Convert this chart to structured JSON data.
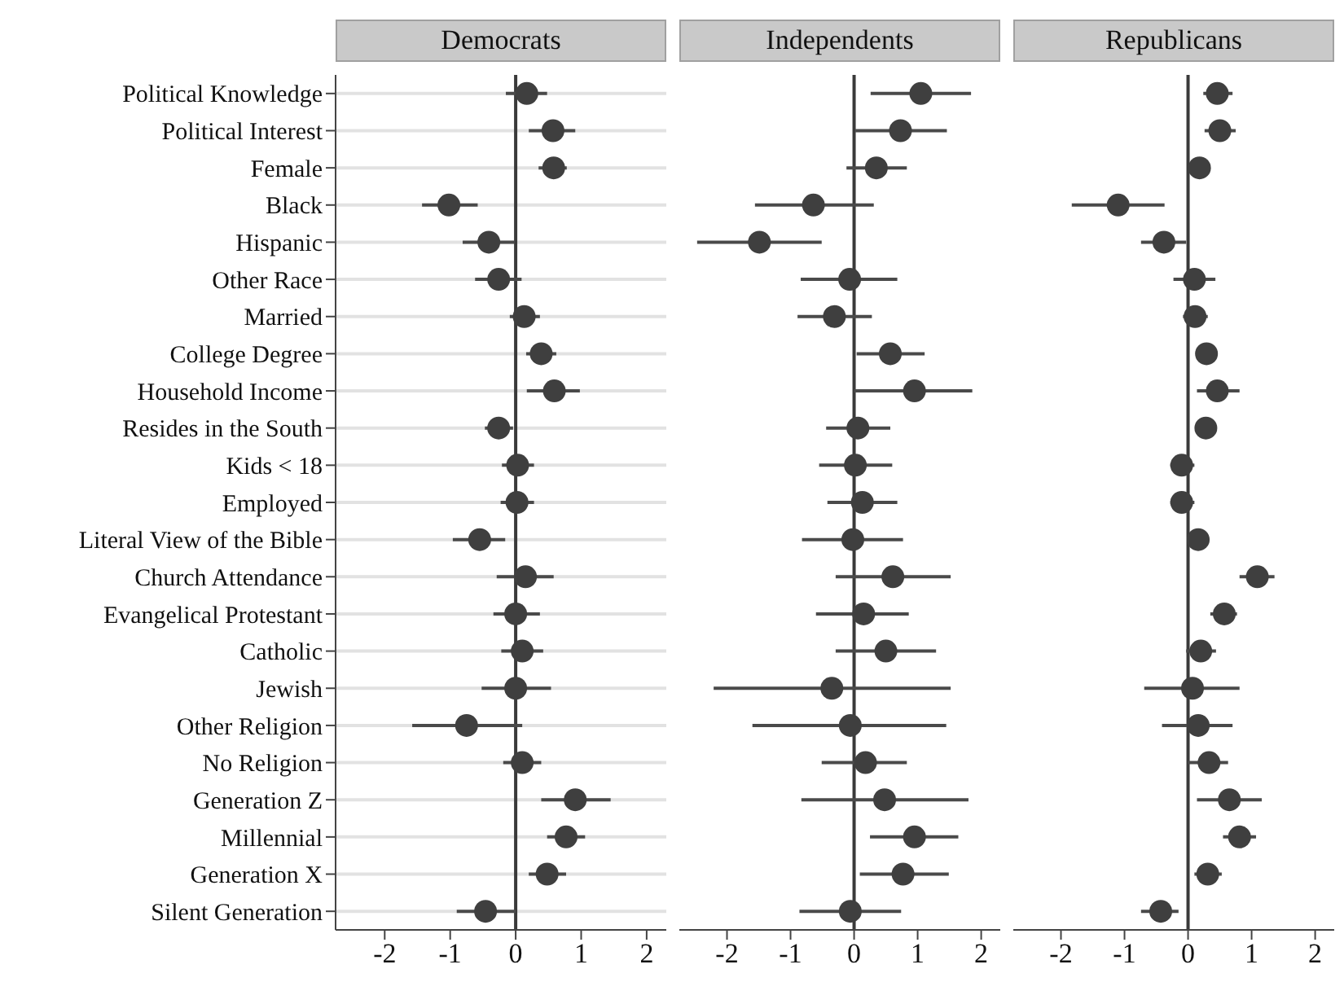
{
  "chart_data": [
    {
      "type": "scatter",
      "title": "Democrats",
      "orientation": "horizontal",
      "marker": "circle",
      "grid": "y",
      "color": "#3f3f3f",
      "xlim": [
        -2.75,
        2.3
      ],
      "xticks": [
        -2,
        -1,
        0,
        1,
        2
      ],
      "ref_lines": [
        {
          "axis": "x",
          "value": 0
        }
      ],
      "categories": [
        "Political Knowledge",
        "Political Interest",
        "Female",
        "Black",
        "Hispanic",
        "Other Race",
        "Married",
        "College Degree",
        "Household Income",
        "Resides in the South",
        "Kids < 18",
        "Employed",
        "Literal View of the Bible",
        "Church Attendance",
        "Evangelical Protestant",
        "Catholic",
        "Jewish",
        "Other Religion",
        "No Religion",
        "Generation Z",
        "Millennial",
        "Generation X",
        "Silent Generation"
      ],
      "values": [
        0.17,
        0.57,
        0.58,
        -1.02,
        -0.41,
        -0.26,
        0.13,
        0.39,
        0.59,
        -0.26,
        0.03,
        0.02,
        -0.55,
        0.15,
        0,
        0.1,
        0,
        -0.75,
        0.1,
        0.91,
        0.77,
        0.48,
        -0.46
      ],
      "errors": [
        [
          -0.15,
          0.48
        ],
        [
          0.2,
          0.91
        ],
        [
          0.35,
          0.78
        ],
        [
          -1.43,
          -0.58
        ],
        [
          -0.81,
          -0.02
        ],
        [
          -0.62,
          0.09
        ],
        [
          -0.09,
          0.37
        ],
        [
          0.16,
          0.62
        ],
        [
          0.17,
          0.98
        ],
        [
          -0.47,
          -0.04
        ],
        [
          -0.21,
          0.28
        ],
        [
          -0.23,
          0.28
        ],
        [
          -0.96,
          -0.16
        ],
        [
          -0.29,
          0.58
        ],
        [
          -0.34,
          0.37
        ],
        [
          -0.22,
          0.42
        ],
        [
          -0.52,
          0.54
        ],
        [
          -1.58,
          0.1
        ],
        [
          -0.19,
          0.39
        ],
        [
          0.39,
          1.45
        ],
        [
          0.48,
          1.06
        ],
        [
          0.2,
          0.77
        ],
        [
          -0.9,
          0
        ]
      ]
    },
    {
      "type": "scatter",
      "title": "Independents",
      "orientation": "horizontal",
      "marker": "circle",
      "grid": "y",
      "color": "#3f3f3f",
      "tick_labels": "x",
      "xlim": [
        -2.75,
        2.3
      ],
      "xticks": [
        -2,
        -1,
        0,
        1,
        2
      ],
      "ref_lines": [
        {
          "axis": "x",
          "value": 0
        }
      ],
      "categories": [
        null,
        null,
        null,
        null,
        null,
        null,
        null,
        null,
        null,
        null,
        null,
        null,
        null,
        null,
        null,
        null,
        null,
        null,
        null,
        null,
        null,
        null,
        null
      ],
      "values": [
        1.05,
        0.73,
        0.35,
        -0.64,
        -1.49,
        -0.07,
        -0.31,
        0.57,
        0.95,
        0.06,
        0.02,
        0.13,
        -0.02,
        0.61,
        0.15,
        0.5,
        -0.35,
        -0.06,
        0.18,
        0.48,
        0.95,
        0.77,
        -0.06
      ],
      "errors": [
        [
          0.26,
          1.84
        ],
        [
          0.02,
          1.46
        ],
        [
          -0.12,
          0.83
        ],
        [
          -1.56,
          0.31
        ],
        [
          -2.47,
          -0.51
        ],
        [
          -0.84,
          0.68
        ],
        [
          -0.89,
          0.28
        ],
        [
          0.04,
          1.11
        ],
        [
          0,
          1.86
        ],
        [
          -0.44,
          0.57
        ],
        [
          -0.55,
          0.6
        ],
        [
          -0.42,
          0.68
        ],
        [
          -0.82,
          0.77
        ],
        [
          -0.29,
          1.52
        ],
        [
          -0.6,
          0.86
        ],
        [
          -0.29,
          1.29
        ],
        [
          -2.21,
          1.52
        ],
        [
          -1.6,
          1.45
        ],
        [
          -0.51,
          0.83
        ],
        [
          -0.83,
          1.8
        ],
        [
          0.25,
          1.64
        ],
        [
          0.09,
          1.49
        ],
        [
          -0.86,
          0.74
        ]
      ]
    },
    {
      "type": "scatter",
      "title": "Republicans",
      "orientation": "horizontal",
      "marker": "circle",
      "grid": "y",
      "color": "#3f3f3f",
      "tick_labels": "x",
      "xlim": [
        -2.75,
        2.3
      ],
      "xticks": [
        -2,
        -1,
        0,
        1,
        2
      ],
      "ref_lines": [
        {
          "axis": "x",
          "value": 0
        }
      ],
      "categories": [
        null,
        null,
        null,
        null,
        null,
        null,
        null,
        null,
        null,
        null,
        null,
        null,
        null,
        null,
        null,
        null,
        null,
        null,
        null,
        null,
        null,
        null,
        null
      ],
      "values": [
        0.46,
        0.5,
        0.18,
        -1.1,
        -0.38,
        0.1,
        0.11,
        0.29,
        0.46,
        0.28,
        -0.1,
        -0.1,
        0.16,
        1.09,
        0.57,
        0.2,
        0.07,
        0.16,
        0.33,
        0.65,
        0.81,
        0.31,
        -0.43
      ],
      "errors": [
        [
          0.24,
          0.7
        ],
        [
          0.26,
          0.75
        ],
        [
          0.03,
          0.33
        ],
        [
          -1.83,
          -0.37
        ],
        [
          -0.74,
          -0.03
        ],
        [
          -0.23,
          0.43
        ],
        [
          -0.08,
          0.31
        ],
        [
          0.13,
          0.44
        ],
        [
          0.14,
          0.81
        ],
        [
          0.13,
          0.42
        ],
        [
          -0.28,
          0.1
        ],
        [
          -0.28,
          0.1
        ],
        [
          0,
          0.33
        ],
        [
          0.81,
          1.36
        ],
        [
          0.35,
          0.77
        ],
        [
          -0.03,
          0.44
        ],
        [
          -0.69,
          0.81
        ],
        [
          -0.41,
          0.7
        ],
        [
          0,
          0.63
        ],
        [
          0.14,
          1.16
        ],
        [
          0.55,
          1.07
        ],
        [
          0.1,
          0.53
        ],
        [
          -0.74,
          -0.15
        ]
      ]
    }
  ]
}
